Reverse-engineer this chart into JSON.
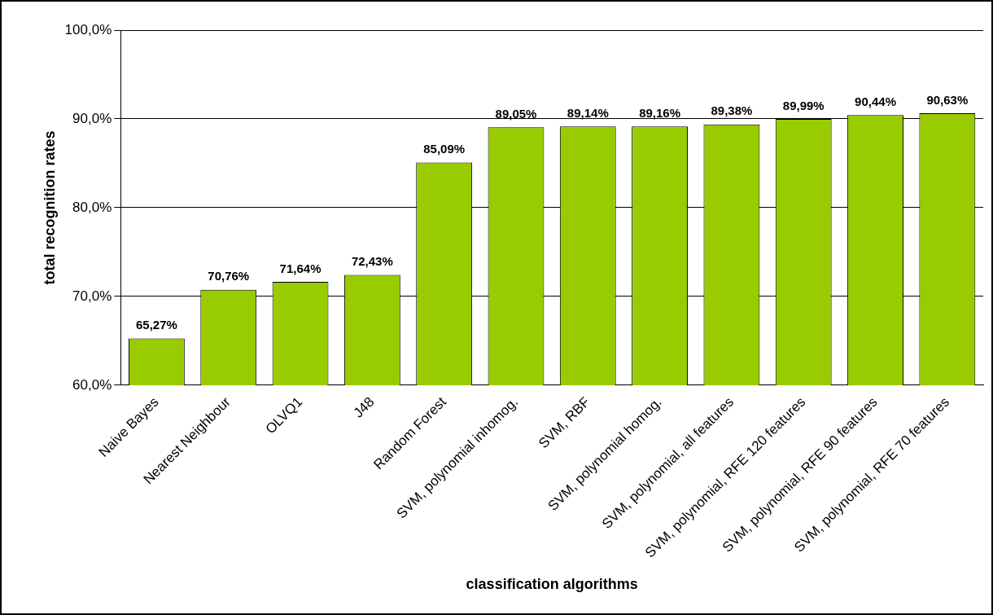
{
  "chart_data": {
    "type": "bar",
    "xlabel": "classification algorithms",
    "ylabel": "total recognition rates",
    "categories": [
      "Naive Bayes",
      "Nearest Neighbour",
      "OLVQ1",
      "J48",
      "Random Forest",
      "SVM, polynomial inhomog.",
      "SVM, RBF",
      "SVM, polynomial homog.",
      "SVM, polynomial, all features",
      "SVM, polynomial, RFE 120 features",
      "SVM, polynomial, RFE 90 features",
      "SVM, polynomial, RFE 70 features"
    ],
    "values": [
      65.27,
      70.76,
      71.64,
      72.43,
      85.09,
      89.05,
      89.14,
      89.16,
      89.38,
      89.99,
      90.44,
      90.63
    ],
    "value_labels": [
      "65,27%",
      "70,76%",
      "71,64%",
      "72,43%",
      "85,09%",
      "89,05%",
      "89,14%",
      "89,16%",
      "89,38%",
      "89,99%",
      "90,44%",
      "90,63%"
    ],
    "color": "#99cc00",
    "ylim": [
      60,
      100
    ],
    "yticks": [
      {
        "value": 60,
        "label": "60,0%"
      },
      {
        "value": 70,
        "label": "70,0%"
      },
      {
        "value": 80,
        "label": "80,0%"
      },
      {
        "value": 90,
        "label": "90,0%"
      },
      {
        "value": 100,
        "label": "100,0%"
      }
    ],
    "grid": "y",
    "legend": false
  }
}
